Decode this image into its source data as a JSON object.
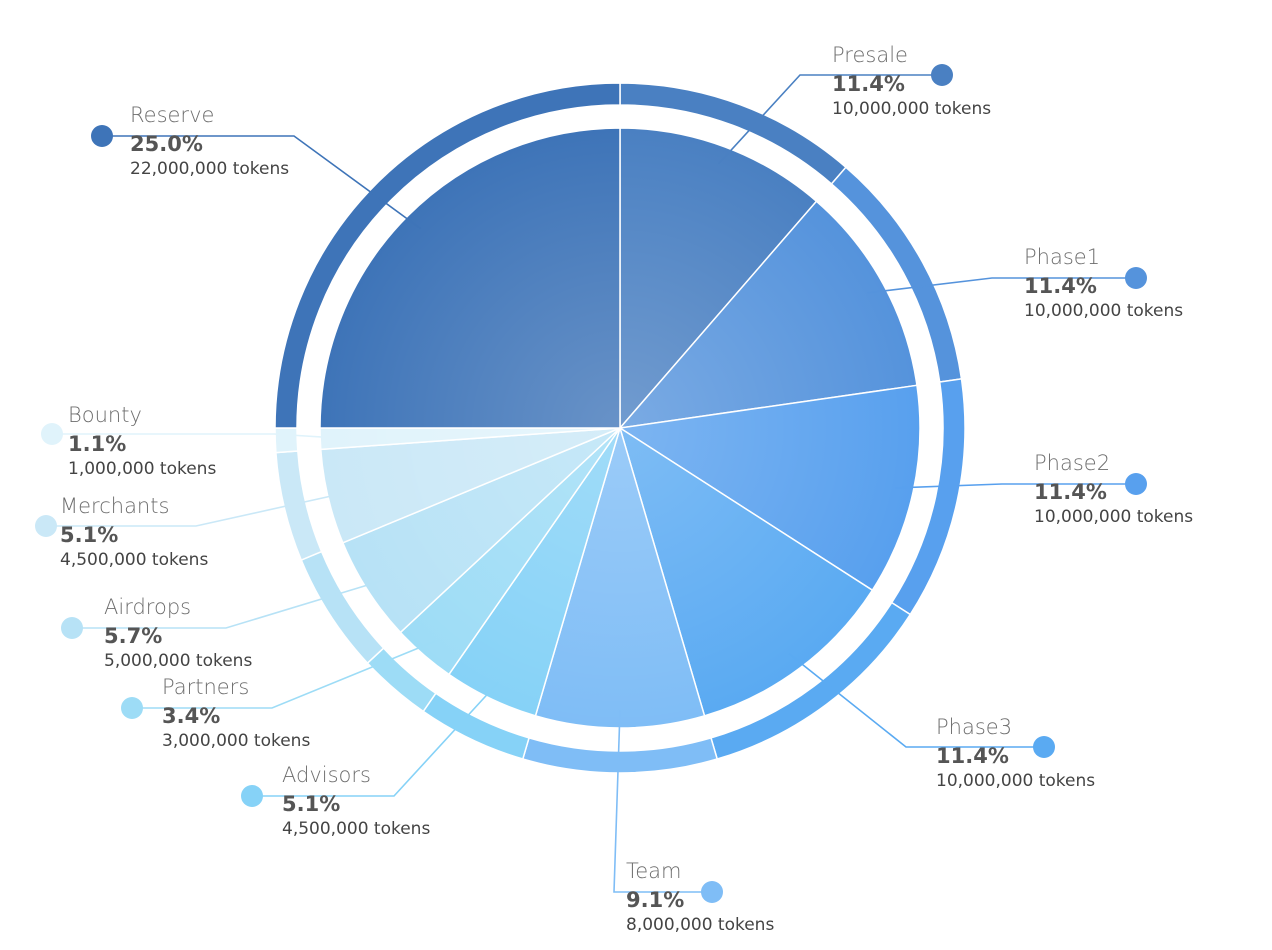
{
  "chart_data": {
    "type": "pie",
    "unit": "tokens",
    "slices": [
      {
        "label": "Presale",
        "percent": 11.4,
        "tokens": 10000000,
        "percent_text": "11.4%",
        "tokens_text": "10,000,000 tokens",
        "color": "#4a80c2"
      },
      {
        "label": "Phase1",
        "percent": 11.4,
        "tokens": 10000000,
        "percent_text": "11.4%",
        "tokens_text": "10,000,000 tokens",
        "color": "#5593dc"
      },
      {
        "label": "Phase2",
        "percent": 11.4,
        "tokens": 10000000,
        "percent_text": "11.4%",
        "tokens_text": "10,000,000 tokens",
        "color": "#58a0ee"
      },
      {
        "label": "Phase3",
        "percent": 11.4,
        "tokens": 10000000,
        "percent_text": "11.4%",
        "tokens_text": "10,000,000 tokens",
        "color": "#5aaaf2"
      },
      {
        "label": "Team",
        "percent": 9.1,
        "tokens": 8000000,
        "percent_text": "9.1%",
        "tokens_text": "8,000,000 tokens",
        "color": "#7fbdf6"
      },
      {
        "label": "Advisors",
        "percent": 5.1,
        "tokens": 4500000,
        "percent_text": "5.1%",
        "tokens_text": "4,500,000 tokens",
        "color": "#86d2f7"
      },
      {
        "label": "Partners",
        "percent": 3.4,
        "tokens": 3000000,
        "percent_text": "3.4%",
        "tokens_text": "3,000,000 tokens",
        "color": "#9ddcf6"
      },
      {
        "label": "Airdrops",
        "percent": 5.7,
        "tokens": 5000000,
        "percent_text": "5.7%",
        "tokens_text": "5,000,000 tokens",
        "color": "#b7e2f6"
      },
      {
        "label": "Merchants",
        "percent": 5.1,
        "tokens": 4500000,
        "percent_text": "5.1%",
        "tokens_text": "4,500,000 tokens",
        "color": "#cae8f7"
      },
      {
        "label": "Bounty",
        "percent": 1.1,
        "tokens": 1000000,
        "percent_text": "1.1%",
        "tokens_text": "1,000,000 tokens",
        "color": "#e0f3fb"
      },
      {
        "label": "Reserve",
        "percent": 25.0,
        "tokens": 22000000,
        "percent_text": "25.0%",
        "tokens_text": "22,000,000 tokens",
        "color": "#3e74b8"
      }
    ],
    "legend": "none",
    "grid": false
  }
}
